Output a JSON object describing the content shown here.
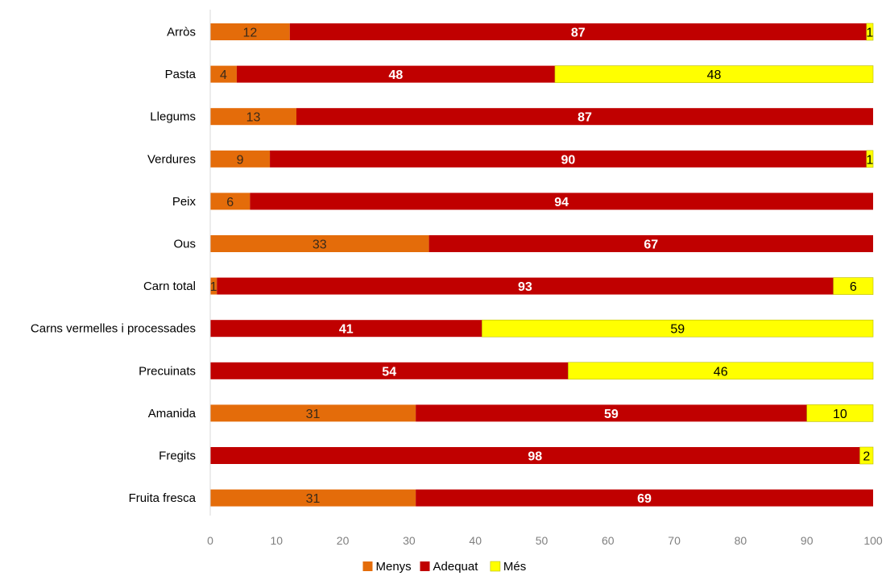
{
  "chart_data": {
    "type": "bar",
    "orientation": "horizontal",
    "stacked": true,
    "categories": [
      "Arròs",
      "Pasta",
      "Llegums",
      "Verdures",
      "Peix",
      "Ous",
      "Carn total",
      "Carns vermelles i processades",
      "Precuinats",
      "Amanida",
      "Fregits",
      "Fruita fresca"
    ],
    "series": [
      {
        "name": "Menys",
        "color": "#E46C0A",
        "label_color": "#3a2a1a",
        "bold_labels": false,
        "values": [
          12,
          4,
          13,
          9,
          6,
          33,
          1,
          0,
          0,
          31,
          0,
          31
        ]
      },
      {
        "name": "Adequat",
        "color": "#C00000",
        "label_color": "#ffffff",
        "bold_labels": true,
        "values": [
          87,
          48,
          87,
          90,
          94,
          67,
          93,
          41,
          54,
          59,
          98,
          69
        ]
      },
      {
        "name": "Més",
        "color": "#FFFF00",
        "label_color": "#000000",
        "bold_labels": false,
        "values": [
          1,
          48,
          0,
          1,
          0,
          0,
          6,
          59,
          46,
          10,
          2,
          0
        ]
      }
    ],
    "xlim": [
      0,
      100
    ],
    "xticks": [
      0,
      10,
      20,
      30,
      40,
      50,
      60,
      70,
      80,
      90,
      100
    ],
    "grid": false,
    "legend_position": "bottom"
  }
}
